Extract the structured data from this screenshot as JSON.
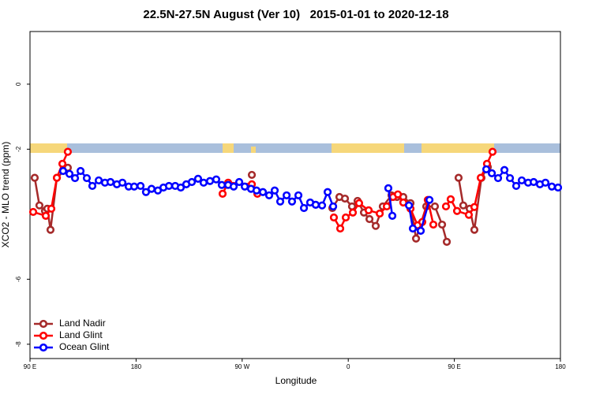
{
  "chart_data": {
    "type": "line",
    "title": "22.5N-27.5N August (Ver 10)   2015-01-01 to 2020-12-18",
    "xlabel": "Longitude",
    "ylabel": "XCO2 - MLO trend (ppm)",
    "xlim": [
      90,
      540
    ],
    "xticks": [
      {
        "value": 90,
        "label": "90 E"
      },
      {
        "value": 180,
        "label": "180"
      },
      {
        "value": 270,
        "label": "90 W"
      },
      {
        "value": 360,
        "label": "0"
      },
      {
        "value": 450,
        "label": "90 E"
      },
      {
        "value": 540,
        "label": "180"
      }
    ],
    "ylim": [
      -8.44,
      1.62
    ],
    "yticks": [
      0,
      -2,
      -6,
      -8
    ],
    "legend": "bottom-left",
    "series": [
      {
        "name": "Land Nadir",
        "color": "#a52a2a",
        "x": [
          94.0,
          98.0,
          102.7,
          104.7,
          107.4,
          112.8,
          122.1,
          null,
          278.2,
          null,
          346.5,
          352.5,
          357.2,
          363.2,
          367.9,
          373.3,
          378.0,
          383.3,
          389.3,
          396.7,
          401.4,
          406.7,
          412.8,
          417.5,
          426.2,
          433.5,
          439.6,
          443.6,
          null,
          453.6,
          457.6,
          463.0,
          467.0,
          473.0,
          478.4
        ],
        "values": [
          -2.88,
          -3.73,
          -3.9,
          -3.83,
          -4.48,
          -2.88,
          -2.57,
          null,
          -2.79,
          null,
          -3.81,
          -3.47,
          -3.52,
          -3.76,
          -3.59,
          -3.95,
          -4.15,
          -4.36,
          -3.76,
          -3.42,
          -3.47,
          -3.47,
          -3.66,
          -4.75,
          -3.76,
          -3.76,
          -4.32,
          -4.85,
          null,
          -2.88,
          -3.73,
          -3.83,
          -4.48,
          -2.88,
          -2.55
        ]
      },
      {
        "name": "Land Glint",
        "color": "#ff0000",
        "x": [
          92.7,
          103.4,
          108.1,
          112.8,
          117.5,
          122.1,
          null,
          253.4,
          258.1,
          278.2,
          282.9,
          null,
          347.8,
          353.2,
          357.9,
          363.9,
          369.2,
          377.3,
          386.7,
          392.7,
          398.0,
          402.1,
          406.7,
          412.8,
          418.8,
          422.8,
          427.5,
          432.2,
          null,
          442.9,
          446.9,
          452.3,
          462.3,
          467.0,
          472.4,
          477.7,
          482.4
        ],
        "values": [
          -3.93,
          -4.05,
          -3.83,
          -2.88,
          -2.45,
          -2.08,
          null,
          -3.37,
          -3.03,
          -3.08,
          -3.37,
          null,
          -4.1,
          -4.44,
          -4.1,
          -3.95,
          -3.66,
          -3.88,
          -3.98,
          -3.76,
          -3.47,
          -3.39,
          -3.64,
          -3.83,
          -4.34,
          -4.24,
          -3.56,
          -4.32,
          null,
          -3.76,
          -3.54,
          -3.9,
          -4.02,
          -3.78,
          -2.88,
          -2.45,
          -2.08
        ]
      },
      {
        "name": "Ocean Glint",
        "color": "#0000ff",
        "x": [
          118.1,
          123.5,
          128.2,
          132.9,
          138.2,
          142.9,
          148.3,
          153.6,
          158.3,
          163.7,
          168.4,
          173.7,
          178.4,
          183.8,
          188.4,
          193.1,
          198.5,
          203.2,
          207.9,
          213.2,
          217.9,
          222.6,
          227.3,
          232.6,
          237.3,
          242.7,
          248.0,
          252.7,
          258.1,
          262.8,
          267.5,
          272.2,
          277.5,
          282.2,
          287.6,
          292.9,
          297.6,
          302.3,
          307.7,
          312.3,
          317.7,
          322.4,
          327.7,
          332.4,
          337.8,
          342.5,
          347.2,
          null,
          394.0,
          397.4,
          null,
          411.5,
          414.8,
          421.5,
          428.9,
          null,
          477.1,
          481.8,
          487.1,
          492.5,
          497.2,
          502.5,
          507.2,
          512.6,
          517.3,
          522.6,
          527.3,
          532.7,
          538.0
        ],
        "values": [
          -2.67,
          -2.76,
          -2.89,
          -2.67,
          -2.89,
          -3.13,
          -2.96,
          -3.03,
          -3.01,
          -3.08,
          -3.03,
          -3.15,
          -3.15,
          -3.13,
          -3.32,
          -3.22,
          -3.27,
          -3.18,
          -3.13,
          -3.13,
          -3.18,
          -3.08,
          -3.01,
          -2.91,
          -3.03,
          -2.98,
          -2.93,
          -3.1,
          -3.1,
          -3.15,
          -3.01,
          -3.15,
          -3.22,
          -3.27,
          -3.32,
          -3.42,
          -3.27,
          -3.61,
          -3.42,
          -3.61,
          -3.42,
          -3.81,
          -3.64,
          -3.71,
          -3.73,
          -3.32,
          -3.76,
          null,
          -3.2,
          -4.05,
          null,
          -3.73,
          -4.44,
          -4.51,
          -3.56,
          null,
          -2.62,
          -2.74,
          -2.89,
          -2.64,
          -2.89,
          -3.13,
          -2.96,
          -3.03,
          -3.01,
          -3.08,
          -3.03,
          -3.15,
          -3.18
        ]
      }
    ]
  }
}
